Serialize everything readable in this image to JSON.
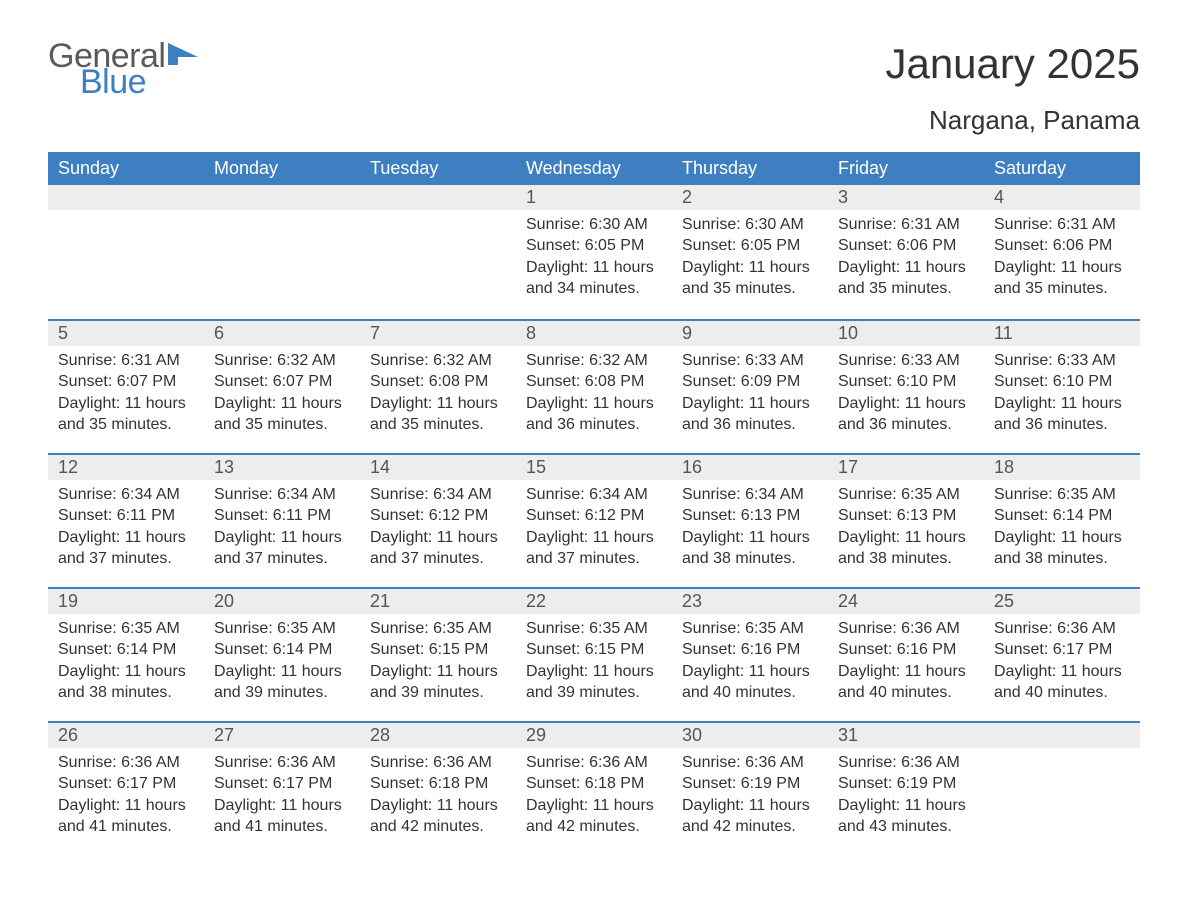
{
  "logo": {
    "word1": "General",
    "word2": "Blue",
    "accent_color": "#3d7fc0",
    "gray": "#5a5a5a"
  },
  "title": "January 2025",
  "subtitle": "Nargana, Panama",
  "colors": {
    "header_bg": "#3d7fc0",
    "header_text": "#ffffff",
    "daynum_bg": "#ededed",
    "daynum_text": "#555555",
    "body_text": "#333333",
    "page_bg": "#ffffff",
    "row_border": "#3d7fc0"
  },
  "typography": {
    "title_fontsize": 42,
    "subtitle_fontsize": 26,
    "header_fontsize": 18,
    "daynum_fontsize": 18,
    "body_fontsize": 16,
    "font_family": "Arial"
  },
  "weekdays": [
    "Sunday",
    "Monday",
    "Tuesday",
    "Wednesday",
    "Thursday",
    "Friday",
    "Saturday"
  ],
  "weeks": [
    [
      null,
      null,
      null,
      {
        "n": "1",
        "sunrise": "Sunrise: 6:30 AM",
        "sunset": "Sunset: 6:05 PM",
        "daylight": "Daylight: 11 hours and 34 minutes."
      },
      {
        "n": "2",
        "sunrise": "Sunrise: 6:30 AM",
        "sunset": "Sunset: 6:05 PM",
        "daylight": "Daylight: 11 hours and 35 minutes."
      },
      {
        "n": "3",
        "sunrise": "Sunrise: 6:31 AM",
        "sunset": "Sunset: 6:06 PM",
        "daylight": "Daylight: 11 hours and 35 minutes."
      },
      {
        "n": "4",
        "sunrise": "Sunrise: 6:31 AM",
        "sunset": "Sunset: 6:06 PM",
        "daylight": "Daylight: 11 hours and 35 minutes."
      }
    ],
    [
      {
        "n": "5",
        "sunrise": "Sunrise: 6:31 AM",
        "sunset": "Sunset: 6:07 PM",
        "daylight": "Daylight: 11 hours and 35 minutes."
      },
      {
        "n": "6",
        "sunrise": "Sunrise: 6:32 AM",
        "sunset": "Sunset: 6:07 PM",
        "daylight": "Daylight: 11 hours and 35 minutes."
      },
      {
        "n": "7",
        "sunrise": "Sunrise: 6:32 AM",
        "sunset": "Sunset: 6:08 PM",
        "daylight": "Daylight: 11 hours and 35 minutes."
      },
      {
        "n": "8",
        "sunrise": "Sunrise: 6:32 AM",
        "sunset": "Sunset: 6:08 PM",
        "daylight": "Daylight: 11 hours and 36 minutes."
      },
      {
        "n": "9",
        "sunrise": "Sunrise: 6:33 AM",
        "sunset": "Sunset: 6:09 PM",
        "daylight": "Daylight: 11 hours and 36 minutes."
      },
      {
        "n": "10",
        "sunrise": "Sunrise: 6:33 AM",
        "sunset": "Sunset: 6:10 PM",
        "daylight": "Daylight: 11 hours and 36 minutes."
      },
      {
        "n": "11",
        "sunrise": "Sunrise: 6:33 AM",
        "sunset": "Sunset: 6:10 PM",
        "daylight": "Daylight: 11 hours and 36 minutes."
      }
    ],
    [
      {
        "n": "12",
        "sunrise": "Sunrise: 6:34 AM",
        "sunset": "Sunset: 6:11 PM",
        "daylight": "Daylight: 11 hours and 37 minutes."
      },
      {
        "n": "13",
        "sunrise": "Sunrise: 6:34 AM",
        "sunset": "Sunset: 6:11 PM",
        "daylight": "Daylight: 11 hours and 37 minutes."
      },
      {
        "n": "14",
        "sunrise": "Sunrise: 6:34 AM",
        "sunset": "Sunset: 6:12 PM",
        "daylight": "Daylight: 11 hours and 37 minutes."
      },
      {
        "n": "15",
        "sunrise": "Sunrise: 6:34 AM",
        "sunset": "Sunset: 6:12 PM",
        "daylight": "Daylight: 11 hours and 37 minutes."
      },
      {
        "n": "16",
        "sunrise": "Sunrise: 6:34 AM",
        "sunset": "Sunset: 6:13 PM",
        "daylight": "Daylight: 11 hours and 38 minutes."
      },
      {
        "n": "17",
        "sunrise": "Sunrise: 6:35 AM",
        "sunset": "Sunset: 6:13 PM",
        "daylight": "Daylight: 11 hours and 38 minutes."
      },
      {
        "n": "18",
        "sunrise": "Sunrise: 6:35 AM",
        "sunset": "Sunset: 6:14 PM",
        "daylight": "Daylight: 11 hours and 38 minutes."
      }
    ],
    [
      {
        "n": "19",
        "sunrise": "Sunrise: 6:35 AM",
        "sunset": "Sunset: 6:14 PM",
        "daylight": "Daylight: 11 hours and 38 minutes."
      },
      {
        "n": "20",
        "sunrise": "Sunrise: 6:35 AM",
        "sunset": "Sunset: 6:14 PM",
        "daylight": "Daylight: 11 hours and 39 minutes."
      },
      {
        "n": "21",
        "sunrise": "Sunrise: 6:35 AM",
        "sunset": "Sunset: 6:15 PM",
        "daylight": "Daylight: 11 hours and 39 minutes."
      },
      {
        "n": "22",
        "sunrise": "Sunrise: 6:35 AM",
        "sunset": "Sunset: 6:15 PM",
        "daylight": "Daylight: 11 hours and 39 minutes."
      },
      {
        "n": "23",
        "sunrise": "Sunrise: 6:35 AM",
        "sunset": "Sunset: 6:16 PM",
        "daylight": "Daylight: 11 hours and 40 minutes."
      },
      {
        "n": "24",
        "sunrise": "Sunrise: 6:36 AM",
        "sunset": "Sunset: 6:16 PM",
        "daylight": "Daylight: 11 hours and 40 minutes."
      },
      {
        "n": "25",
        "sunrise": "Sunrise: 6:36 AM",
        "sunset": "Sunset: 6:17 PM",
        "daylight": "Daylight: 11 hours and 40 minutes."
      }
    ],
    [
      {
        "n": "26",
        "sunrise": "Sunrise: 6:36 AM",
        "sunset": "Sunset: 6:17 PM",
        "daylight": "Daylight: 11 hours and 41 minutes."
      },
      {
        "n": "27",
        "sunrise": "Sunrise: 6:36 AM",
        "sunset": "Sunset: 6:17 PM",
        "daylight": "Daylight: 11 hours and 41 minutes."
      },
      {
        "n": "28",
        "sunrise": "Sunrise: 6:36 AM",
        "sunset": "Sunset: 6:18 PM",
        "daylight": "Daylight: 11 hours and 42 minutes."
      },
      {
        "n": "29",
        "sunrise": "Sunrise: 6:36 AM",
        "sunset": "Sunset: 6:18 PM",
        "daylight": "Daylight: 11 hours and 42 minutes."
      },
      {
        "n": "30",
        "sunrise": "Sunrise: 6:36 AM",
        "sunset": "Sunset: 6:19 PM",
        "daylight": "Daylight: 11 hours and 42 minutes."
      },
      {
        "n": "31",
        "sunrise": "Sunrise: 6:36 AM",
        "sunset": "Sunset: 6:19 PM",
        "daylight": "Daylight: 11 hours and 43 minutes."
      },
      null
    ]
  ]
}
